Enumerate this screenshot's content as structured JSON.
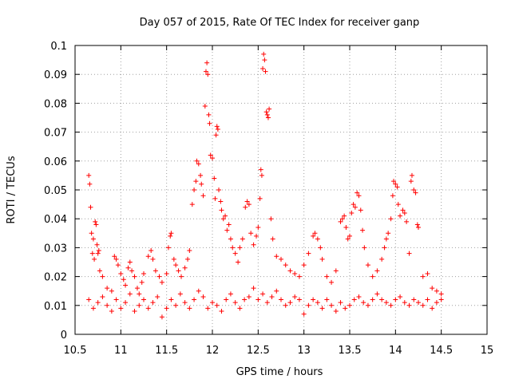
{
  "chart_data": {
    "type": "scatter",
    "title": "Day 057 of 2015, Rate Of TEC Index for receiver ganp",
    "xlabel": "GPS time / hours",
    "ylabel": "ROTI / TECUs",
    "xlim": [
      10.5,
      15
    ],
    "ylim": [
      0,
      0.1
    ],
    "x_ticks": [
      10.5,
      11,
      11.5,
      12,
      12.5,
      13,
      13.5,
      14,
      14.5,
      15
    ],
    "x_tick_labels": [
      "10.5",
      "11",
      "11.5",
      "12",
      "12.5",
      "13",
      "13.5",
      "14",
      "14.5",
      "15"
    ],
    "y_ticks": [
      0,
      0.01,
      0.02,
      0.03,
      0.04,
      0.05,
      0.06,
      0.07,
      0.08,
      0.09,
      0.1
    ],
    "y_tick_labels": [
      "0",
      "0.01",
      "0.02",
      "0.03",
      "0.04",
      "0.05",
      "0.06",
      "0.07",
      "0.08",
      "0.09",
      "0.1"
    ],
    "grid": true,
    "marker": "+",
    "color": "#ff0000",
    "series": [
      {
        "name": "ROTI",
        "points": [
          [
            10.65,
            0.055
          ],
          [
            10.66,
            0.052
          ],
          [
            10.67,
            0.044
          ],
          [
            10.68,
            0.035
          ],
          [
            10.7,
            0.033
          ],
          [
            10.72,
            0.039
          ],
          [
            10.73,
            0.038
          ],
          [
            10.74,
            0.031
          ],
          [
            10.75,
            0.028
          ],
          [
            10.77,
            0.022
          ],
          [
            10.69,
            0.028
          ],
          [
            10.71,
            0.026
          ],
          [
            10.76,
            0.029
          ],
          [
            10.8,
            0.02
          ],
          [
            10.85,
            0.016
          ],
          [
            10.9,
            0.015
          ],
          [
            10.93,
            0.027
          ],
          [
            10.95,
            0.026
          ],
          [
            10.97,
            0.024
          ],
          [
            11.0,
            0.021
          ],
          [
            11.03,
            0.019
          ],
          [
            11.05,
            0.017
          ],
          [
            11.08,
            0.023
          ],
          [
            11.1,
            0.025
          ],
          [
            11.12,
            0.022
          ],
          [
            11.15,
            0.02
          ],
          [
            11.18,
            0.016
          ],
          [
            11.2,
            0.014
          ],
          [
            11.23,
            0.018
          ],
          [
            11.25,
            0.021
          ],
          [
            11.3,
            0.027
          ],
          [
            11.33,
            0.029
          ],
          [
            11.35,
            0.026
          ],
          [
            11.38,
            0.022
          ],
          [
            11.42,
            0.02
          ],
          [
            11.45,
            0.018
          ],
          [
            11.5,
            0.021
          ],
          [
            11.52,
            0.03
          ],
          [
            11.54,
            0.034
          ],
          [
            11.55,
            0.035
          ],
          [
            11.58,
            0.026
          ],
          [
            11.6,
            0.024
          ],
          [
            11.63,
            0.022
          ],
          [
            11.66,
            0.02
          ],
          [
            11.7,
            0.023
          ],
          [
            11.73,
            0.026
          ],
          [
            11.75,
            0.029
          ],
          [
            11.78,
            0.045
          ],
          [
            11.8,
            0.05
          ],
          [
            11.82,
            0.053
          ],
          [
            11.83,
            0.06
          ],
          [
            11.85,
            0.059
          ],
          [
            11.87,
            0.055
          ],
          [
            11.88,
            0.052
          ],
          [
            11.9,
            0.048
          ],
          [
            11.92,
            0.079
          ],
          [
            11.93,
            0.091
          ],
          [
            11.94,
            0.094
          ],
          [
            11.95,
            0.09
          ],
          [
            11.96,
            0.076
          ],
          [
            11.97,
            0.073
          ],
          [
            11.98,
            0.062
          ],
          [
            12.0,
            0.061
          ],
          [
            12.02,
            0.054
          ],
          [
            12.03,
            0.047
          ],
          [
            12.04,
            0.069
          ],
          [
            12.05,
            0.072
          ],
          [
            12.06,
            0.071
          ],
          [
            12.07,
            0.05
          ],
          [
            12.09,
            0.046
          ],
          [
            12.1,
            0.043
          ],
          [
            12.12,
            0.04
          ],
          [
            12.14,
            0.041
          ],
          [
            12.16,
            0.036
          ],
          [
            12.18,
            0.038
          ],
          [
            12.2,
            0.033
          ],
          [
            12.22,
            0.03
          ],
          [
            12.25,
            0.028
          ],
          [
            12.28,
            0.025
          ],
          [
            12.3,
            0.03
          ],
          [
            12.33,
            0.033
          ],
          [
            12.36,
            0.044
          ],
          [
            12.38,
            0.046
          ],
          [
            12.4,
            0.045
          ],
          [
            12.42,
            0.035
          ],
          [
            12.45,
            0.031
          ],
          [
            12.48,
            0.034
          ],
          [
            12.5,
            0.037
          ],
          [
            12.52,
            0.047
          ],
          [
            12.53,
            0.057
          ],
          [
            12.54,
            0.055
          ],
          [
            12.55,
            0.092
          ],
          [
            12.56,
            0.097
          ],
          [
            12.57,
            0.095
          ],
          [
            12.58,
            0.091
          ],
          [
            12.59,
            0.077
          ],
          [
            12.6,
            0.076
          ],
          [
            12.61,
            0.075
          ],
          [
            12.62,
            0.078
          ],
          [
            12.64,
            0.04
          ],
          [
            12.66,
            0.033
          ],
          [
            12.7,
            0.027
          ],
          [
            12.75,
            0.026
          ],
          [
            12.8,
            0.024
          ],
          [
            12.85,
            0.022
          ],
          [
            12.9,
            0.021
          ],
          [
            12.95,
            0.02
          ],
          [
            13.0,
            0.024
          ],
          [
            13.05,
            0.028
          ],
          [
            13.1,
            0.034
          ],
          [
            13.12,
            0.035
          ],
          [
            13.15,
            0.033
          ],
          [
            13.18,
            0.03
          ],
          [
            13.2,
            0.026
          ],
          [
            13.25,
            0.02
          ],
          [
            13.3,
            0.018
          ],
          [
            13.35,
            0.022
          ],
          [
            13.4,
            0.039
          ],
          [
            13.42,
            0.04
          ],
          [
            13.44,
            0.041
          ],
          [
            13.46,
            0.037
          ],
          [
            13.48,
            0.033
          ],
          [
            13.5,
            0.034
          ],
          [
            13.52,
            0.042
          ],
          [
            13.54,
            0.045
          ],
          [
            13.56,
            0.044
          ],
          [
            13.58,
            0.049
          ],
          [
            13.6,
            0.048
          ],
          [
            13.62,
            0.043
          ],
          [
            13.64,
            0.036
          ],
          [
            13.66,
            0.03
          ],
          [
            13.7,
            0.024
          ],
          [
            13.75,
            0.02
          ],
          [
            13.8,
            0.022
          ],
          [
            13.85,
            0.026
          ],
          [
            13.88,
            0.03
          ],
          [
            13.9,
            0.033
          ],
          [
            13.92,
            0.035
          ],
          [
            13.95,
            0.04
          ],
          [
            13.97,
            0.048
          ],
          [
            13.98,
            0.053
          ],
          [
            14.0,
            0.052
          ],
          [
            14.02,
            0.051
          ],
          [
            14.03,
            0.045
          ],
          [
            14.05,
            0.041
          ],
          [
            14.08,
            0.043
          ],
          [
            14.1,
            0.042
          ],
          [
            14.12,
            0.039
          ],
          [
            14.15,
            0.028
          ],
          [
            14.17,
            0.053
          ],
          [
            14.18,
            0.055
          ],
          [
            14.2,
            0.05
          ],
          [
            14.22,
            0.049
          ],
          [
            14.24,
            0.038
          ],
          [
            14.25,
            0.037
          ],
          [
            14.3,
            0.02
          ],
          [
            14.35,
            0.021
          ],
          [
            14.4,
            0.016
          ],
          [
            14.45,
            0.015
          ],
          [
            14.5,
            0.014
          ],
          [
            10.65,
            0.012
          ],
          [
            10.7,
            0.009
          ],
          [
            10.75,
            0.011
          ],
          [
            10.8,
            0.013
          ],
          [
            10.85,
            0.01
          ],
          [
            10.9,
            0.008
          ],
          [
            10.95,
            0.012
          ],
          [
            11.0,
            0.009
          ],
          [
            11.05,
            0.011
          ],
          [
            11.1,
            0.014
          ],
          [
            11.15,
            0.008
          ],
          [
            11.2,
            0.01
          ],
          [
            11.25,
            0.012
          ],
          [
            11.3,
            0.009
          ],
          [
            11.35,
            0.011
          ],
          [
            11.4,
            0.013
          ],
          [
            11.45,
            0.006
          ],
          [
            11.5,
            0.009
          ],
          [
            11.55,
            0.012
          ],
          [
            11.6,
            0.01
          ],
          [
            11.65,
            0.014
          ],
          [
            11.7,
            0.011
          ],
          [
            11.75,
            0.009
          ],
          [
            11.8,
            0.012
          ],
          [
            11.85,
            0.015
          ],
          [
            11.9,
            0.013
          ],
          [
            11.95,
            0.009
          ],
          [
            12.0,
            0.011
          ],
          [
            12.05,
            0.01
          ],
          [
            12.1,
            0.008
          ],
          [
            12.15,
            0.012
          ],
          [
            12.2,
            0.014
          ],
          [
            12.25,
            0.011
          ],
          [
            12.3,
            0.009
          ],
          [
            12.35,
            0.012
          ],
          [
            12.4,
            0.013
          ],
          [
            12.45,
            0.016
          ],
          [
            12.5,
            0.012
          ],
          [
            12.55,
            0.014
          ],
          [
            12.6,
            0.011
          ],
          [
            12.65,
            0.013
          ],
          [
            12.7,
            0.015
          ],
          [
            12.75,
            0.012
          ],
          [
            12.8,
            0.01
          ],
          [
            12.85,
            0.011
          ],
          [
            12.9,
            0.013
          ],
          [
            12.95,
            0.012
          ],
          [
            13.0,
            0.007
          ],
          [
            13.05,
            0.01
          ],
          [
            13.1,
            0.012
          ],
          [
            13.15,
            0.011
          ],
          [
            13.2,
            0.009
          ],
          [
            13.25,
            0.012
          ],
          [
            13.3,
            0.01
          ],
          [
            13.35,
            0.008
          ],
          [
            13.4,
            0.011
          ],
          [
            13.45,
            0.009
          ],
          [
            13.5,
            0.01
          ],
          [
            13.55,
            0.012
          ],
          [
            13.6,
            0.013
          ],
          [
            13.65,
            0.011
          ],
          [
            13.7,
            0.01
          ],
          [
            13.75,
            0.012
          ],
          [
            13.8,
            0.014
          ],
          [
            13.85,
            0.012
          ],
          [
            13.9,
            0.011
          ],
          [
            13.95,
            0.01
          ],
          [
            14.0,
            0.012
          ],
          [
            14.05,
            0.013
          ],
          [
            14.1,
            0.011
          ],
          [
            14.15,
            0.01
          ],
          [
            14.2,
            0.012
          ],
          [
            14.25,
            0.011
          ],
          [
            14.3,
            0.01
          ],
          [
            14.35,
            0.012
          ],
          [
            14.4,
            0.009
          ],
          [
            14.45,
            0.011
          ],
          [
            14.5,
            0.012
          ]
        ]
      }
    ]
  }
}
